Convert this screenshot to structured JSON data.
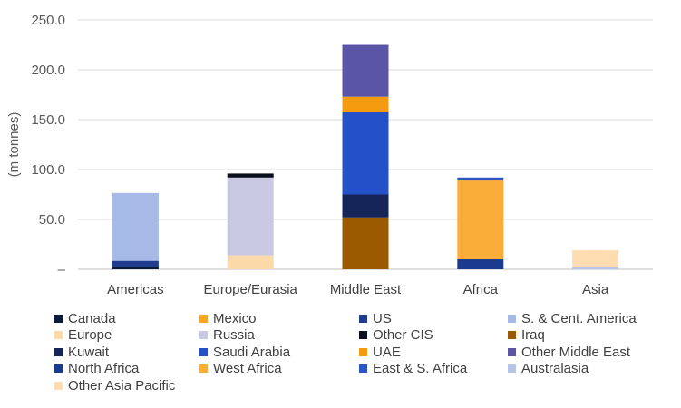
{
  "chart_data": {
    "type": "bar",
    "stacked": true,
    "ylabel": "(m tonnes)",
    "ylim": [
      0,
      250
    ],
    "yticks": [
      "–",
      "50.0",
      "100.0",
      "150.0",
      "200.0",
      "250.0"
    ],
    "categories": [
      "Americas",
      "Europe/Eurasia",
      "Middle East",
      "Africa",
      "Asia"
    ],
    "grid": true,
    "legend_position": "bottom",
    "series": [
      {
        "name": "Canada",
        "color": "#0b1a3a",
        "values": [
          2.5,
          0,
          0,
          0,
          0
        ]
      },
      {
        "name": "Mexico",
        "color": "#f5a623",
        "values": [
          0,
          0,
          0,
          0,
          0
        ]
      },
      {
        "name": "US",
        "color": "#1f3c8f",
        "values": [
          6,
          0,
          0,
          0,
          0
        ]
      },
      {
        "name": "S. & Cent. America",
        "color": "#a7b9e6",
        "values": [
          68,
          0,
          0,
          0,
          0
        ]
      },
      {
        "name": "Europe",
        "color": "#fcd9a8",
        "values": [
          0,
          14,
          0,
          0,
          0
        ]
      },
      {
        "name": "Russia",
        "color": "#c9c9e3",
        "values": [
          0,
          78,
          0,
          0,
          0
        ]
      },
      {
        "name": "Other CIS",
        "color": "#0a0f1e",
        "values": [
          0,
          4,
          0,
          0,
          0
        ]
      },
      {
        "name": "Iraq",
        "color": "#9c5a00",
        "values": [
          0,
          0,
          52,
          0,
          0
        ]
      },
      {
        "name": "Kuwait",
        "color": "#15255a",
        "values": [
          0,
          0,
          23,
          0,
          0
        ]
      },
      {
        "name": "Saudi Arabia",
        "color": "#2451c8",
        "values": [
          0,
          0,
          83,
          0,
          0
        ]
      },
      {
        "name": "UAE",
        "color": "#f59b0f",
        "values": [
          0,
          0,
          15,
          0,
          0
        ]
      },
      {
        "name": "Other Middle East",
        "color": "#5b55a8",
        "values": [
          0,
          0,
          52,
          0,
          0
        ]
      },
      {
        "name": "North Africa",
        "color": "#1b3b8e",
        "values": [
          0,
          0,
          0,
          10,
          0
        ]
      },
      {
        "name": "West Africa",
        "color": "#faad39",
        "values": [
          0,
          0,
          0,
          79,
          0
        ]
      },
      {
        "name": "East & S. Africa",
        "color": "#2c56c4",
        "values": [
          0,
          0,
          0,
          3,
          0
        ]
      },
      {
        "name": "Australasia",
        "color": "#b8c4e8",
        "values": [
          0,
          0,
          0,
          0,
          2
        ]
      },
      {
        "name": "Other Asia Pacific",
        "color": "#fcdcb0",
        "values": [
          0,
          0,
          0,
          0,
          17
        ]
      }
    ]
  }
}
